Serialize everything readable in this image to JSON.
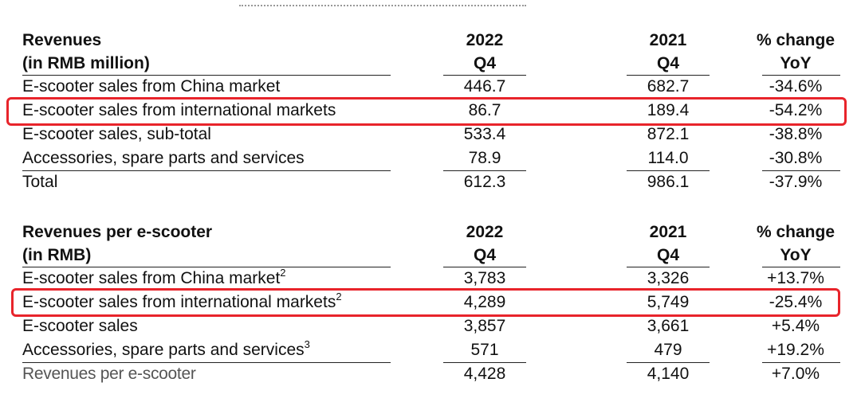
{
  "tables": [
    {
      "header": {
        "label_line1": "Revenues",
        "label_line2": "(in RMB million)",
        "col1_line1": "2022",
        "col1_line2": "Q4",
        "col2_line1": "2021",
        "col2_line2": "Q4",
        "col3_line1": "% change",
        "col3_line2": "YoY"
      },
      "rows": [
        {
          "label": "E-scooter sales from China market",
          "sup": "",
          "q4_2022": "446.7",
          "q4_2021": "682.7",
          "yoy": "-34.6%",
          "highlighted": false
        },
        {
          "label": "E-scooter sales from international markets",
          "sup": "",
          "q4_2022": "86.7",
          "q4_2021": "189.4",
          "yoy": "-54.2%",
          "highlighted": true
        },
        {
          "label": "E-scooter sales, sub-total",
          "sup": "",
          "q4_2022": "533.4",
          "q4_2021": "872.1",
          "yoy": "-38.8%",
          "highlighted": false
        },
        {
          "label": "Accessories, spare parts and services",
          "sup": "",
          "q4_2022": "78.9",
          "q4_2021": "114.0",
          "yoy": "-30.8%",
          "highlighted": false
        },
        {
          "label": "Total",
          "sup": "",
          "q4_2022": "612.3",
          "q4_2021": "986.1",
          "yoy": "-37.9%",
          "highlighted": false
        }
      ]
    },
    {
      "header": {
        "label_line1": "Revenues per e-scooter",
        "label_line2": "(in RMB)",
        "col1_line1": "2022",
        "col1_line2": "Q4",
        "col2_line1": "2021",
        "col2_line2": "Q4",
        "col3_line1": "% change",
        "col3_line2": "YoY"
      },
      "rows": [
        {
          "label": "E-scooter sales from China market",
          "sup": "2",
          "q4_2022": "3,783",
          "q4_2021": "3,326",
          "yoy": "+13.7%",
          "highlighted": false
        },
        {
          "label": "E-scooter sales from international markets",
          "sup": "2",
          "q4_2022": "4,289",
          "q4_2021": "5,749",
          "yoy": "-25.4%",
          "highlighted": true
        },
        {
          "label": "E-scooter sales",
          "sup": "",
          "q4_2022": "3,857",
          "q4_2021": "3,661",
          "yoy": "+5.4%",
          "highlighted": false
        },
        {
          "label": "Accessories, spare parts and services",
          "sup": "3",
          "q4_2022": "571",
          "q4_2021": "479",
          "yoy": "+19.2%",
          "highlighted": false
        },
        {
          "label": "Revenues per e-scooter",
          "sup": "",
          "q4_2022": "4,428",
          "q4_2021": "4,140",
          "yoy": "+7.0%",
          "highlighted": false
        }
      ]
    }
  ],
  "colors": {
    "highlight": "#e8242b",
    "rule": "#222222"
  }
}
